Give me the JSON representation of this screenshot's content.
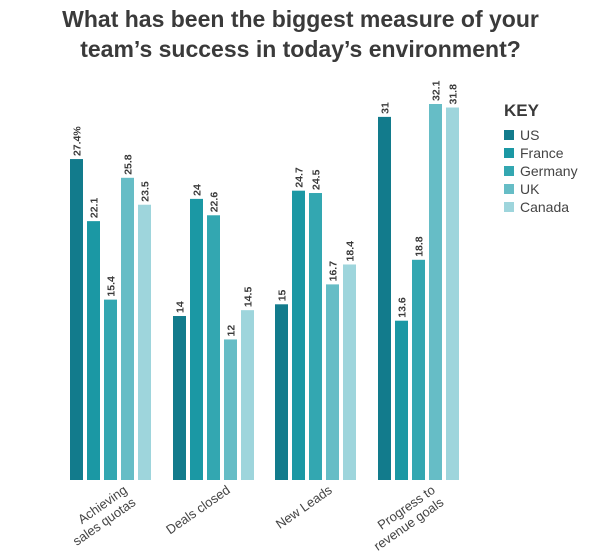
{
  "title_lines": [
    "What has been the biggest measure of your",
    "team’s success in today’s environment?"
  ],
  "legend": {
    "title": "KEY",
    "items": [
      {
        "label": "US",
        "color": "#127b8c"
      },
      {
        "label": "France",
        "color": "#1b98a4"
      },
      {
        "label": "Germany",
        "color": "#33a7b1"
      },
      {
        "label": "UK",
        "color": "#66bdc6"
      },
      {
        "label": "Canada",
        "color": "#9ed5dc"
      }
    ]
  },
  "chart_data": {
    "type": "bar",
    "title": "What has been the biggest measure of your team’s success in today’s environment?",
    "categories": [
      [
        "Achieving",
        "sales quotas"
      ],
      [
        "Deals closed"
      ],
      [
        "New Leads"
      ],
      [
        "Progress to",
        "revenue goals"
      ]
    ],
    "series": [
      {
        "name": "US",
        "color": "#127b8c",
        "values": [
          27.4,
          14,
          15,
          31
        ],
        "labels": [
          "27.4%",
          "14",
          "15",
          "31"
        ]
      },
      {
        "name": "France",
        "color": "#1b98a4",
        "values": [
          22.1,
          24,
          24.7,
          13.6
        ],
        "labels": [
          "22.1",
          "24",
          "24.7",
          "13.6"
        ]
      },
      {
        "name": "Germany",
        "color": "#33a7b1",
        "values": [
          15.4,
          22.6,
          24.5,
          18.8
        ],
        "labels": [
          "15.4",
          "22.6",
          "24.5",
          "18.8"
        ]
      },
      {
        "name": "UK",
        "color": "#66bdc6",
        "values": [
          25.8,
          12,
          16.7,
          32.1
        ],
        "labels": [
          "25.8",
          "12",
          "16.7",
          "32.1"
        ]
      },
      {
        "name": "Canada",
        "color": "#9ed5dc",
        "values": [
          23.5,
          14.5,
          18.4,
          31.8
        ],
        "labels": [
          "23.5",
          "14.5",
          "18.4",
          "31.8"
        ]
      }
    ],
    "ylim": [
      0,
      32.1
    ],
    "legend_position": "right",
    "grid": false
  }
}
